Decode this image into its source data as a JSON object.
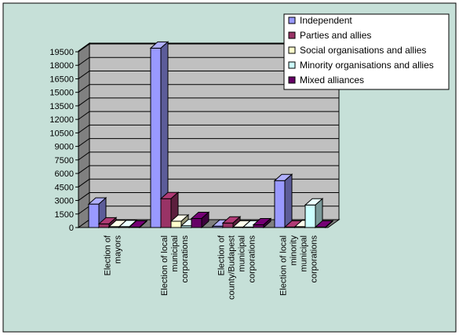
{
  "chart_data": {
    "type": "bar",
    "title": "",
    "xlabel": "",
    "ylabel": "",
    "ylim": [
      0,
      19500
    ],
    "yticks": [
      0,
      1500,
      3000,
      4500,
      6000,
      7500,
      9000,
      10500,
      12000,
      13500,
      15000,
      16500,
      18000,
      19500
    ],
    "grid": true,
    "legend_position": "top-right",
    "categories": [
      [
        "Election of",
        "mayors"
      ],
      [
        "Election of local",
        "municipal",
        "corporations"
      ],
      [
        "Election of",
        "county/Budapest",
        "municipal",
        "corporations"
      ],
      [
        "Election of local",
        "minority",
        "municipal",
        "corporations"
      ]
    ],
    "series": [
      {
        "name": "Independent",
        "color": "#9999ff",
        "values": [
          2600,
          19900,
          150,
          5200
        ]
      },
      {
        "name": "Parties and allies",
        "color": "#993366",
        "values": [
          400,
          3200,
          500,
          50
        ]
      },
      {
        "name": "Social organisations and allies",
        "color": "#ffffcc",
        "values": [
          100,
          700,
          50,
          100
        ]
      },
      {
        "name": "Minority organisations and allies",
        "color": "#ccffff",
        "values": [
          100,
          200,
          50,
          2500
        ]
      },
      {
        "name": "Mixed alliances",
        "color": "#660066",
        "values": [
          50,
          1000,
          300,
          50
        ]
      }
    ]
  }
}
